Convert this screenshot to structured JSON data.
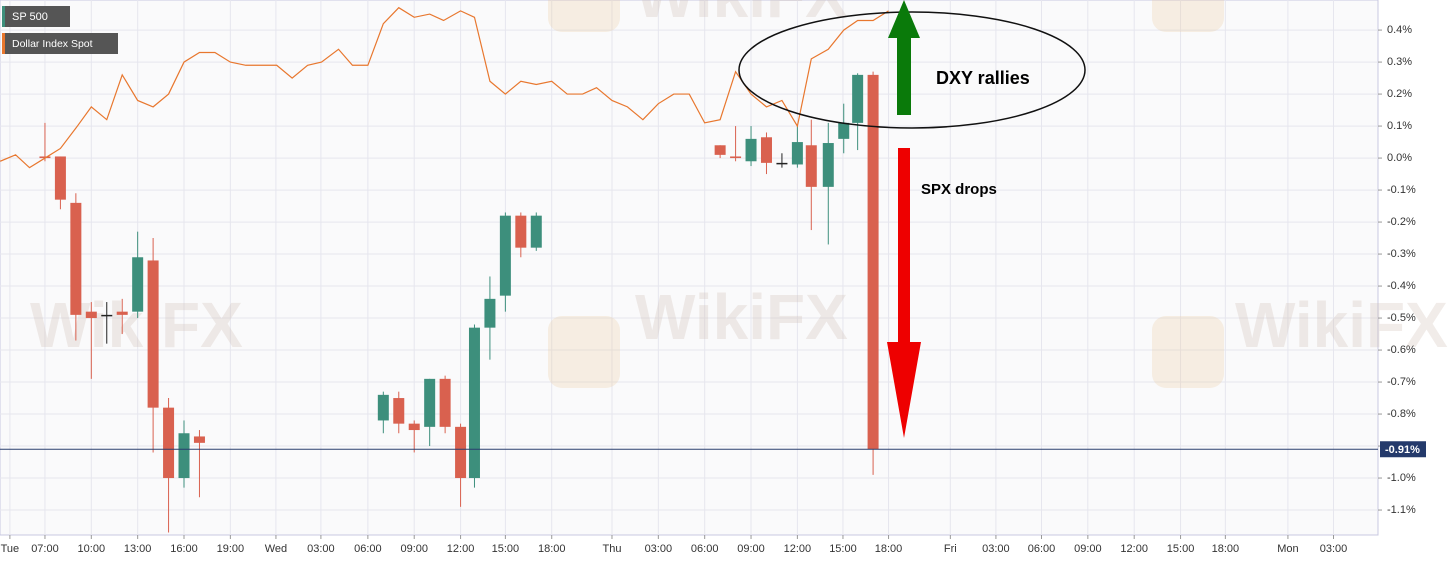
{
  "chart_data": {
    "type": "candlestick",
    "watermark": "WikiFX",
    "annotations": [
      "DXY rallies",
      "SPX drops"
    ],
    "last_price": {
      "value": -0.91,
      "label": "-0.91%"
    },
    "grid": true,
    "xlim": [
      -2.91,
      86.28
    ],
    "ylim": [
      -1.178,
      0.494
    ],
    "yticks": [
      {
        "value": 0.4,
        "label": "0.4%"
      },
      {
        "value": 0.3,
        "label": "0.3%"
      },
      {
        "value": 0.2,
        "label": "0.2%"
      },
      {
        "value": 0.1,
        "label": "0.1%"
      },
      {
        "value": 0.0,
        "label": "0.0%"
      },
      {
        "value": -0.1,
        "label": "-0.1%"
      },
      {
        "value": -0.2,
        "label": "-0.2%"
      },
      {
        "value": -0.3,
        "label": "-0.3%"
      },
      {
        "value": -0.4,
        "label": "-0.4%"
      },
      {
        "value": -0.5,
        "label": "-0.5%"
      },
      {
        "value": -0.6,
        "label": "-0.6%"
      },
      {
        "value": -0.7,
        "label": "-0.7%"
      },
      {
        "value": -0.8,
        "label": "-0.8%"
      },
      {
        "value": -0.9,
        "label": "-0.9%"
      },
      {
        "value": -1.0,
        "label": "-1.0%"
      },
      {
        "value": -1.1,
        "label": "-1.1%"
      }
    ],
    "xticks": [
      {
        "value": -2.27,
        "label": "Tue"
      },
      {
        "value": 0,
        "label": "07:00"
      },
      {
        "value": 3,
        "label": "10:00"
      },
      {
        "value": 6,
        "label": "13:00"
      },
      {
        "value": 9,
        "label": "16:00"
      },
      {
        "value": 12,
        "label": "19:00"
      },
      {
        "value": 14.95,
        "label": "Wed"
      },
      {
        "value": 17.86,
        "label": "03:00"
      },
      {
        "value": 20.9,
        "label": "06:00"
      },
      {
        "value": 23.9,
        "label": "09:00"
      },
      {
        "value": 26.9,
        "label": "12:00"
      },
      {
        "value": 29.8,
        "label": "15:00"
      },
      {
        "value": 32.8,
        "label": "18:00"
      },
      {
        "value": 36.7,
        "label": "Thu"
      },
      {
        "value": 39.7,
        "label": "03:00"
      },
      {
        "value": 42.7,
        "label": "06:00"
      },
      {
        "value": 45.7,
        "label": "09:00"
      },
      {
        "value": 48.7,
        "label": "12:00"
      },
      {
        "value": 51.65,
        "label": "15:00"
      },
      {
        "value": 54.6,
        "label": "18:00"
      },
      {
        "value": 58.6,
        "label": "Fri"
      },
      {
        "value": 61.55,
        "label": "03:00"
      },
      {
        "value": 64.5,
        "label": "06:00"
      },
      {
        "value": 67.5,
        "label": "09:00"
      },
      {
        "value": 70.5,
        "label": "12:00"
      },
      {
        "value": 73.5,
        "label": "15:00"
      },
      {
        "value": 76.4,
        "label": "18:00"
      },
      {
        "value": 80.45,
        "label": "Mon"
      },
      {
        "value": 83.4,
        "label": "03:00"
      }
    ],
    "series": [
      {
        "name": "SP 500",
        "type": "candlestick",
        "up_color": "#3d8f7c",
        "down_color": "#d9614f",
        "flat_color": "#222222",
        "x": [
          0,
          1,
          2,
          3,
          4,
          5,
          6,
          7,
          8,
          9,
          10,
          21.9,
          22.9,
          23.9,
          24.9,
          25.9,
          26.9,
          27.8,
          28.8,
          29.8,
          30.8,
          31.8,
          43.7,
          44.7,
          45.7,
          46.7,
          47.7,
          48.7,
          49.6,
          50.7,
          51.7,
          52.6,
          53.6
        ],
        "open": [
          0.005,
          0.005,
          -0.14,
          -0.48,
          -0.49,
          -0.48,
          -0.48,
          -0.32,
          -0.78,
          -1.0,
          -0.87,
          -0.82,
          -0.75,
          -0.83,
          -0.84,
          -0.69,
          -0.84,
          -1.0,
          -0.53,
          -0.43,
          -0.18,
          -0.28,
          0.04,
          0.005,
          -0.01,
          0.065,
          -0.015,
          -0.02,
          0.04,
          -0.09,
          0.06,
          0.11,
          0.26
        ],
        "high": [
          0.11,
          0.005,
          -0.11,
          -0.45,
          -0.45,
          -0.44,
          -0.23,
          -0.25,
          -0.75,
          -0.82,
          -0.85,
          -0.73,
          -0.73,
          -0.82,
          -0.69,
          -0.68,
          -0.83,
          -0.52,
          -0.37,
          -0.17,
          -0.17,
          -0.17,
          0.04,
          0.1,
          0.1,
          0.08,
          0.015,
          0.1,
          0.12,
          0.11,
          0.17,
          0.265,
          0.27
        ],
        "low": [
          -0.01,
          -0.16,
          -0.57,
          -0.69,
          -0.58,
          -0.55,
          -0.5,
          -0.92,
          -1.17,
          -1.03,
          -1.06,
          -0.86,
          -0.86,
          -0.92,
          -0.9,
          -0.86,
          -1.09,
          -1.03,
          -0.63,
          -0.48,
          -0.31,
          -0.29,
          0.0,
          -0.01,
          -0.025,
          -0.05,
          -0.03,
          -0.03,
          -0.225,
          -0.27,
          0.015,
          0.025,
          -0.99
        ],
        "close": [
          0.0,
          -0.13,
          -0.49,
          -0.5,
          -0.49,
          -0.49,
          -0.31,
          -0.78,
          -1.0,
          -0.86,
          -0.89,
          -0.74,
          -0.83,
          -0.85,
          -0.69,
          -0.84,
          -1.0,
          -0.53,
          -0.44,
          -0.18,
          -0.28,
          -0.18,
          0.01,
          0.0,
          0.06,
          -0.015,
          -0.015,
          0.05,
          -0.09,
          0.047,
          0.11,
          0.26,
          -0.91
        ]
      },
      {
        "name": "Dollar Index Spot",
        "type": "line",
        "color": "#e8772e",
        "x": [
          -2.9,
          -1.9,
          -1,
          0,
          1,
          2.1,
          3,
          4,
          5,
          6,
          7,
          8,
          9,
          10,
          11,
          12,
          13,
          14,
          15,
          16,
          17,
          17.9,
          19,
          19.9,
          20.9,
          21.9,
          22.9,
          23.9,
          24.9,
          25.8,
          26.9,
          27.8,
          28.8,
          29.8,
          30.8,
          31.8,
          32.8,
          33.8,
          34.8,
          35.7,
          36.7,
          37.7,
          38.7,
          39.7,
          40.7,
          41.7,
          42.7,
          43.7,
          44.7,
          45.7,
          46.7,
          47.7,
          48.7,
          49.6,
          50.7,
          51.7,
          52.6,
          53.6,
          54.6
        ],
        "values": [
          -0.01,
          0.01,
          -0.03,
          0.0,
          0.03,
          0.1,
          0.16,
          0.12,
          0.26,
          0.18,
          0.16,
          0.2,
          0.3,
          0.33,
          0.33,
          0.3,
          0.29,
          0.29,
          0.29,
          0.25,
          0.29,
          0.3,
          0.34,
          0.29,
          0.29,
          0.42,
          0.47,
          0.44,
          0.45,
          0.43,
          0.46,
          0.44,
          0.24,
          0.2,
          0.24,
          0.23,
          0.24,
          0.2,
          0.2,
          0.22,
          0.18,
          0.16,
          0.12,
          0.17,
          0.2,
          0.2,
          0.11,
          0.12,
          0.27,
          0.2,
          0.16,
          0.18,
          0.1,
          0.31,
          0.34,
          0.4,
          0.43,
          0.43,
          0.46
        ]
      }
    ]
  }
}
